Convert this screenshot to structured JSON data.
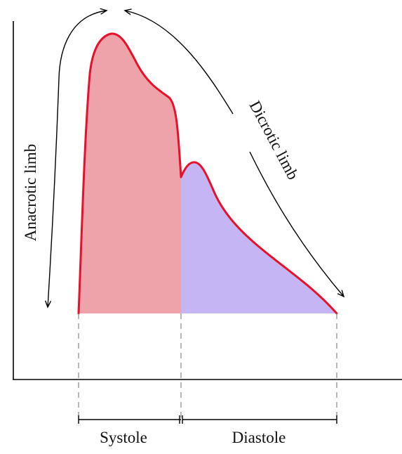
{
  "labels": {
    "anacrotic": "Anacrotic limb",
    "dicrotic": "Dicrotic limb",
    "systole": "Systole",
    "diastole": "Diastole"
  },
  "colors": {
    "curve": "#e8102a",
    "systole_fill": "#eea2aa",
    "diastole_fill": "#c5b5f5",
    "axis": "#000000",
    "arrow": "#000000",
    "dashed": "#888888"
  }
}
